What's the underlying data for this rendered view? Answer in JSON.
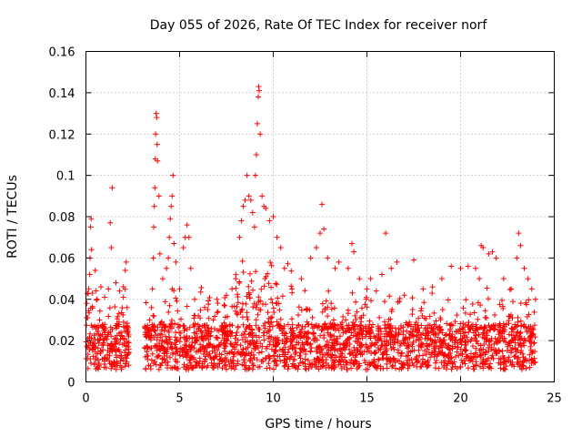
{
  "chart_data": {
    "type": "scatter",
    "title": "Day 055 of 2026, Rate Of TEC Index for receiver norf",
    "xlabel": "GPS time / hours",
    "ylabel": "ROTI / TECUs",
    "xlim": [
      0,
      25
    ],
    "ylim": [
      0,
      0.16
    ],
    "xticks": [
      0,
      5,
      10,
      15,
      20,
      25
    ],
    "yticks": [
      0,
      0.02,
      0.04,
      0.06,
      0.08,
      0.1,
      0.12,
      0.14,
      0.16
    ],
    "xtick_labels": [
      "0",
      "5",
      "10",
      "15",
      "20",
      "25"
    ],
    "ytick_labels": [
      "0",
      "0.02",
      "0.04",
      "0.06",
      "0.08",
      "0.1",
      "0.12",
      "0.14",
      "0.16"
    ],
    "grid": true,
    "marker": "+",
    "series": [
      {
        "name": "ROTI",
        "color": "#ff0000",
        "gaps_hours": [
          [
            2.3,
            3.1
          ]
        ],
        "points": [
          [
            0.05,
            0.038
          ],
          [
            0.1,
            0.021
          ],
          [
            0.15,
            0.045
          ],
          [
            0.2,
            0.052
          ],
          [
            0.22,
            0.06
          ],
          [
            0.25,
            0.075
          ],
          [
            0.28,
            0.079
          ],
          [
            0.3,
            0.064
          ],
          [
            0.35,
            0.043
          ],
          [
            0.5,
            0.054
          ],
          [
            0.6,
            0.04
          ],
          [
            0.8,
            0.046
          ],
          [
            1.0,
            0.041
          ],
          [
            1.2,
            0.045
          ],
          [
            1.3,
            0.077
          ],
          [
            1.35,
            0.065
          ],
          [
            1.4,
            0.094
          ],
          [
            1.6,
            0.048
          ],
          [
            1.8,
            0.044
          ],
          [
            2.0,
            0.041
          ],
          [
            2.1,
            0.054
          ],
          [
            2.15,
            0.058
          ],
          [
            2.2,
            0.036
          ],
          [
            3.3,
            0.025
          ],
          [
            3.4,
            0.03
          ],
          [
            3.5,
            0.036
          ],
          [
            3.55,
            0.045
          ],
          [
            3.6,
            0.06
          ],
          [
            3.62,
            0.075
          ],
          [
            3.65,
            0.085
          ],
          [
            3.68,
            0.094
          ],
          [
            3.7,
            0.108
          ],
          [
            3.72,
            0.12
          ],
          [
            3.75,
            0.13
          ],
          [
            3.78,
            0.128
          ],
          [
            3.8,
            0.115
          ],
          [
            3.82,
            0.107
          ],
          [
            3.9,
            0.09
          ],
          [
            3.95,
            0.062
          ],
          [
            4.1,
            0.05
          ],
          [
            4.3,
            0.055
          ],
          [
            4.4,
            0.06
          ],
          [
            4.45,
            0.07
          ],
          [
            4.5,
            0.079
          ],
          [
            4.55,
            0.085
          ],
          [
            4.6,
            0.09
          ],
          [
            4.65,
            0.1
          ],
          [
            4.7,
            0.067
          ],
          [
            4.8,
            0.058
          ],
          [
            5.0,
            0.045
          ],
          [
            5.2,
            0.065
          ],
          [
            5.3,
            0.07
          ],
          [
            5.4,
            0.076
          ],
          [
            5.5,
            0.07
          ],
          [
            5.6,
            0.055
          ],
          [
            5.8,
            0.04
          ],
          [
            6.0,
            0.032
          ],
          [
            6.5,
            0.035
          ],
          [
            7.0,
            0.04
          ],
          [
            7.5,
            0.042
          ],
          [
            7.8,
            0.045
          ],
          [
            8.0,
            0.05
          ],
          [
            8.2,
            0.07
          ],
          [
            8.3,
            0.078
          ],
          [
            8.4,
            0.085
          ],
          [
            8.5,
            0.088
          ],
          [
            8.6,
            0.1
          ],
          [
            8.7,
            0.09
          ],
          [
            8.8,
            0.088
          ],
          [
            8.9,
            0.082
          ],
          [
            9.0,
            0.075
          ],
          [
            9.05,
            0.1
          ],
          [
            9.1,
            0.11
          ],
          [
            9.15,
            0.125
          ],
          [
            9.2,
            0.138
          ],
          [
            9.22,
            0.143
          ],
          [
            9.25,
            0.141
          ],
          [
            9.3,
            0.12
          ],
          [
            9.4,
            0.09
          ],
          [
            9.5,
            0.085
          ],
          [
            9.6,
            0.084
          ],
          [
            9.8,
            0.078
          ],
          [
            10.0,
            0.08
          ],
          [
            10.2,
            0.07
          ],
          [
            10.4,
            0.065
          ],
          [
            10.6,
            0.055
          ],
          [
            11.0,
            0.045
          ],
          [
            11.5,
            0.05
          ],
          [
            12.0,
            0.06
          ],
          [
            12.3,
            0.065
          ],
          [
            12.5,
            0.072
          ],
          [
            12.6,
            0.086
          ],
          [
            12.7,
            0.074
          ],
          [
            12.9,
            0.06
          ],
          [
            13.3,
            0.055
          ],
          [
            13.5,
            0.058
          ],
          [
            14.0,
            0.055
          ],
          [
            14.2,
            0.067
          ],
          [
            14.3,
            0.063
          ],
          [
            14.6,
            0.05
          ],
          [
            15.0,
            0.045
          ],
          [
            15.2,
            0.05
          ],
          [
            15.5,
            0.044
          ],
          [
            15.8,
            0.052
          ],
          [
            16.0,
            0.072
          ],
          [
            16.3,
            0.055
          ],
          [
            16.6,
            0.058
          ],
          [
            17.0,
            0.042
          ],
          [
            17.5,
            0.059
          ],
          [
            18.0,
            0.045
          ],
          [
            18.5,
            0.046
          ],
          [
            19.0,
            0.05
          ],
          [
            19.5,
            0.056
          ],
          [
            20.0,
            0.055
          ],
          [
            20.4,
            0.056
          ],
          [
            20.8,
            0.055
          ],
          [
            21.0,
            0.05
          ],
          [
            21.1,
            0.066
          ],
          [
            21.2,
            0.065
          ],
          [
            21.5,
            0.062
          ],
          [
            21.7,
            0.063
          ],
          [
            21.9,
            0.06
          ],
          [
            22.3,
            0.05
          ],
          [
            22.7,
            0.045
          ],
          [
            23.0,
            0.06
          ],
          [
            23.1,
            0.072
          ],
          [
            23.2,
            0.066
          ],
          [
            23.4,
            0.055
          ],
          [
            23.6,
            0.05
          ],
          [
            23.8,
            0.045
          ],
          [
            24.0,
            0.04
          ]
        ]
      }
    ]
  }
}
